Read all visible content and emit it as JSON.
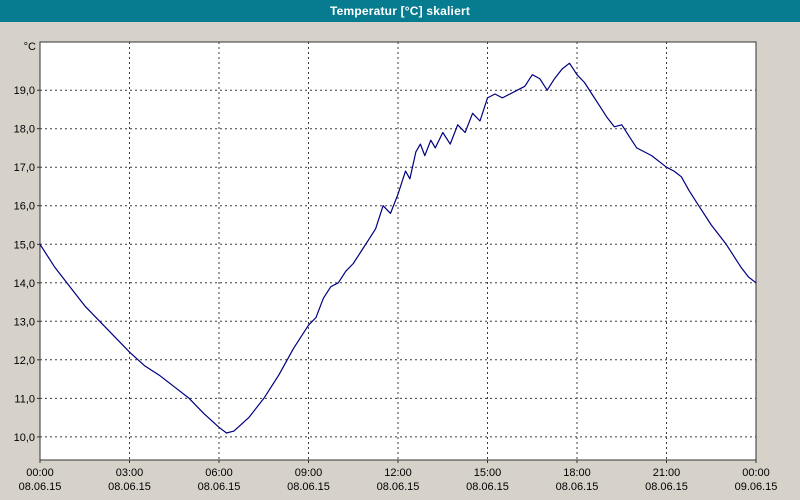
{
  "window": {
    "title": "Temperatur [°C] skaliert"
  },
  "colors": {
    "titlebar": "#077c90",
    "background": "#d6d2ca",
    "plot_background": "#ffffff",
    "line": "#000080",
    "grid": "#3c3c3c"
  },
  "chart_data": {
    "type": "line",
    "title": "Temperatur [°C] skaliert",
    "unit_label": "°C",
    "grid": true,
    "legend": "none",
    "xlim": [
      0,
      24
    ],
    "ylim": [
      9.4,
      20.25
    ],
    "xticks": [
      {
        "hour": 0,
        "time": "00:00",
        "date": "08.06.15"
      },
      {
        "hour": 3,
        "time": "03:00",
        "date": "08.06.15"
      },
      {
        "hour": 6,
        "time": "06:00",
        "date": "08.06.15"
      },
      {
        "hour": 9,
        "time": "09:00",
        "date": "08.06.15"
      },
      {
        "hour": 12,
        "time": "12:00",
        "date": "08.06.15"
      },
      {
        "hour": 15,
        "time": "15:00",
        "date": "08.06.15"
      },
      {
        "hour": 18,
        "time": "18:00",
        "date": "08.06.15"
      },
      {
        "hour": 21,
        "time": "21:00",
        "date": "08.06.15"
      },
      {
        "hour": 24,
        "time": "00:00",
        "date": "09.06.15"
      }
    ],
    "yticks": [
      {
        "value": 10,
        "label": "10,0"
      },
      {
        "value": 11,
        "label": "11,0"
      },
      {
        "value": 12,
        "label": "12,0"
      },
      {
        "value": 13,
        "label": "13,0"
      },
      {
        "value": 14,
        "label": "14,0"
      },
      {
        "value": 15,
        "label": "15,0"
      },
      {
        "value": 16,
        "label": "16,0"
      },
      {
        "value": 17,
        "label": "17,0"
      },
      {
        "value": 18,
        "label": "18,0"
      },
      {
        "value": 19,
        "label": "19,0"
      }
    ],
    "series": [
      {
        "name": "Temperatur",
        "x": [
          0,
          0.5,
          1,
          1.5,
          2,
          2.5,
          3,
          3.5,
          4,
          4.5,
          5,
          5.5,
          6,
          6.25,
          6.5,
          7,
          7.5,
          8,
          8.5,
          9,
          9.25,
          9.5,
          9.75,
          10,
          10.25,
          10.5,
          10.75,
          11,
          11.25,
          11.5,
          11.75,
          12,
          12.25,
          12.4,
          12.6,
          12.75,
          12.9,
          13.1,
          13.25,
          13.5,
          13.75,
          14,
          14.25,
          14.5,
          14.75,
          15,
          15.25,
          15.5,
          15.75,
          16,
          16.25,
          16.5,
          16.75,
          17,
          17.25,
          17.5,
          17.75,
          18,
          18.25,
          18.5,
          18.75,
          19,
          19.25,
          19.5,
          19.75,
          20,
          20.5,
          21,
          21.25,
          21.5,
          21.75,
          22,
          22.5,
          23,
          23.5,
          23.75,
          24
        ],
        "y": [
          15.0,
          14.4,
          13.9,
          13.4,
          13.0,
          12.6,
          12.2,
          11.85,
          11.6,
          11.3,
          11.0,
          10.6,
          10.25,
          10.1,
          10.15,
          10.5,
          11.0,
          11.6,
          12.3,
          12.9,
          13.1,
          13.6,
          13.9,
          14.0,
          14.3,
          14.5,
          14.8,
          15.1,
          15.4,
          16.0,
          15.8,
          16.3,
          16.9,
          16.7,
          17.4,
          17.6,
          17.3,
          17.7,
          17.5,
          17.9,
          17.6,
          18.1,
          17.9,
          18.4,
          18.2,
          18.8,
          18.9,
          18.8,
          18.9,
          19.0,
          19.1,
          19.4,
          19.3,
          19.0,
          19.3,
          19.55,
          19.7,
          19.4,
          19.2,
          18.9,
          18.6,
          18.3,
          18.05,
          18.1,
          17.8,
          17.5,
          17.3,
          17.0,
          16.9,
          16.75,
          16.4,
          16.1,
          15.5,
          15.0,
          14.4,
          14.15,
          14.0
        ]
      }
    ]
  }
}
